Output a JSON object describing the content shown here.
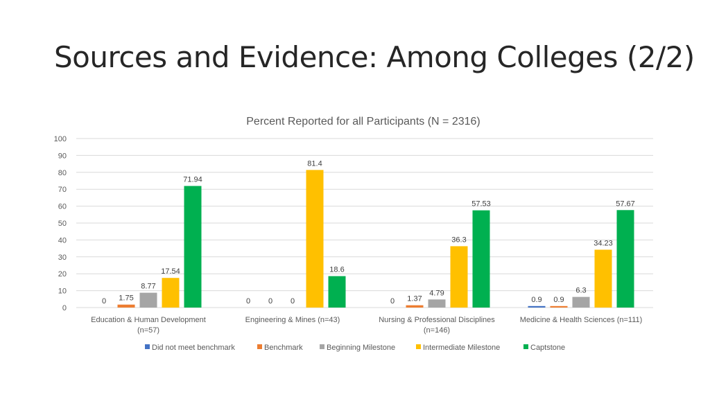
{
  "slide": {
    "title": "Sources and Evidence: Among Colleges (2/2)"
  },
  "chart_data": {
    "type": "bar",
    "title": "Percent Reported for all Participants (N = 2316)",
    "categories": [
      [
        "Education & Human Development",
        "(n=57)"
      ],
      [
        "Engineering & Mines (n=43)"
      ],
      [
        "Nursing & Professional Disciplines",
        "(n=146)"
      ],
      [
        "Medicine & Health Sciences (n=111)"
      ]
    ],
    "series": [
      {
        "name": "Did not meet benchmark",
        "color": "#4472c4",
        "values": [
          0,
          0,
          0,
          0.9
        ],
        "labels": [
          "0",
          "0",
          "0",
          "0.9"
        ]
      },
      {
        "name": "Benchmark",
        "color": "#ed7d31",
        "values": [
          1.75,
          0,
          1.37,
          0.9
        ],
        "labels": [
          "1.75",
          "0",
          "1.37",
          "0.9"
        ]
      },
      {
        "name": "Beginning Milestone",
        "color": "#a5a5a5",
        "values": [
          8.77,
          0,
          4.79,
          6.3
        ],
        "labels": [
          "8.77",
          "0",
          "4.79",
          "6.3"
        ]
      },
      {
        "name": "Intermediate Milestone",
        "color": "#ffc000",
        "values": [
          17.54,
          81.4,
          36.3,
          34.23
        ],
        "labels": [
          "17.54",
          "81.4",
          "36.3",
          "34.23"
        ]
      },
      {
        "name": "Captstone",
        "color": "#00b050",
        "values": [
          71.94,
          18.6,
          57.53,
          57.67
        ],
        "labels": [
          "71.94",
          "18.6",
          "57.53",
          "57.67"
        ]
      }
    ],
    "ylim": [
      0,
      100
    ],
    "yticks": [
      "0",
      "10",
      "20",
      "30",
      "40",
      "50",
      "60",
      "70",
      "80",
      "90",
      "100"
    ],
    "grid": true,
    "legend_position": "bottom"
  }
}
